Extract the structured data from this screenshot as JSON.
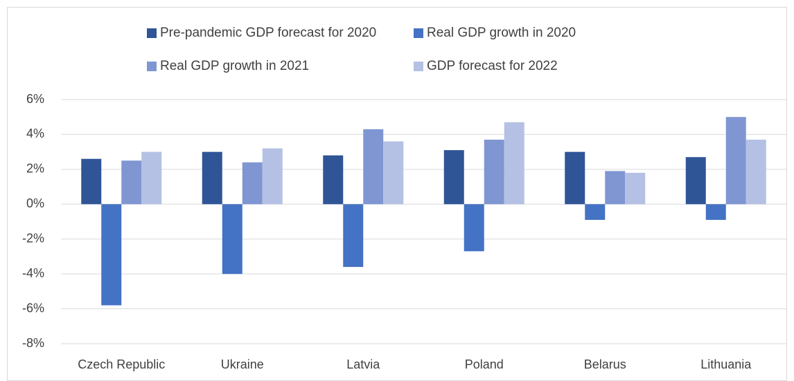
{
  "chart_data": {
    "type": "bar",
    "categories": [
      "Czech Republic",
      "Ukraine",
      "Latvia",
      "Poland",
      "Belarus",
      "Lithuania"
    ],
    "series": [
      {
        "name": "Pre-pandemic GDP forecast for 2020",
        "color": "#2f5597",
        "values": [
          2.6,
          3.0,
          2.8,
          3.1,
          3.0,
          2.7
        ]
      },
      {
        "name": "Real GDP growth in 2020",
        "color": "#4472c4",
        "values": [
          -5.8,
          -4.0,
          -3.6,
          -2.7,
          -0.9,
          -0.9
        ]
      },
      {
        "name": "Real GDP growth in 2021",
        "color": "#7f96d3",
        "values": [
          2.5,
          2.4,
          4.3,
          3.7,
          1.9,
          5.0
        ]
      },
      {
        "name": "GDP forecast for 2022",
        "color": "#b4c1e4",
        "values": [
          3.0,
          3.2,
          3.6,
          4.7,
          1.8,
          3.7
        ]
      }
    ],
    "ylim": [
      -8,
      6
    ],
    "yticks": [
      {
        "value": -8,
        "label": "-8%"
      },
      {
        "value": -6,
        "label": "-6%"
      },
      {
        "value": -4,
        "label": "-4%"
      },
      {
        "value": -2,
        "label": "-2%"
      },
      {
        "value": 0,
        "label": "0%"
      },
      {
        "value": 2,
        "label": "2%"
      },
      {
        "value": 4,
        "label": "4%"
      },
      {
        "value": 6,
        "label": "6%"
      }
    ],
    "grid": true,
    "legend": "top"
  }
}
